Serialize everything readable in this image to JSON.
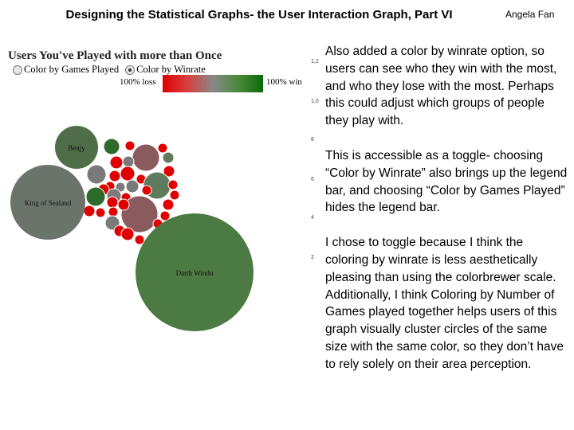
{
  "slide": {
    "title": "Designing the Statistical Graphs- the User Interaction Graph, Part VI",
    "author": "Angela Fan"
  },
  "viz": {
    "title": "Users You've Played with more than Once",
    "options": [
      {
        "label": "Color by Games Played",
        "selected": false
      },
      {
        "label": "Color by Winrate",
        "selected": true
      }
    ],
    "legend": {
      "low_label": "100% loss",
      "high_label": "100% win",
      "low_color": "#e00000",
      "mid_color": "#888888",
      "high_color": "#0a6a0a"
    },
    "bubbles": [
      {
        "label": "Benjy",
        "color": "#4f6e48"
      },
      {
        "label": "King of Sealand",
        "color": "#6b746a"
      },
      {
        "label": "Darth Windu",
        "color": "#4c7a43"
      }
    ],
    "small_bubble_colors": [
      "#e00000",
      "#7a7a7a",
      "#2e6a2a",
      "#8a5a5e",
      "#5f7a5c"
    ]
  },
  "axis_ticks": [
    "1,2",
    "1,0",
    "8",
    "6",
    "4",
    "2"
  ],
  "body": {
    "p1": "Also added a color by winrate option, so users can see who they win with the most, and who they lose with the most. Perhaps this could adjust which groups of people they play with.",
    "p2": "This is accessible as a toggle- choosing “Color by Winrate” also brings up the legend bar, and choosing “Color by Games Played” hides the legend bar.",
    "p3": "I chose to toggle because I think the coloring by winrate is less aesthetically pleasing than using the colorbrewer scale. Additionally, I think Coloring by Number of Games played together helps users of this graph visually cluster circles of the same size with the same color, so they don’t have to rely solely on their area perception."
  }
}
